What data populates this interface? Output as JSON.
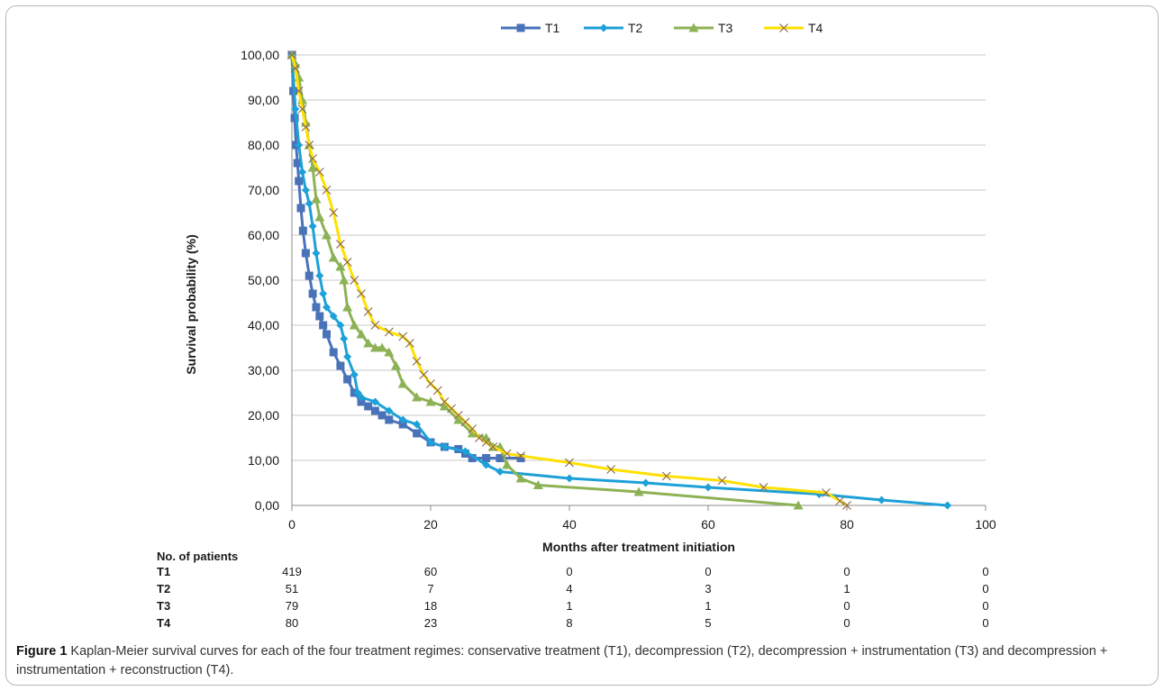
{
  "chart_data": {
    "type": "line",
    "title": "",
    "xlabel": "Months after treatment initiation",
    "ylabel": "Survival probability (%)",
    "xlim": [
      0,
      100
    ],
    "ylim": [
      0,
      100
    ],
    "x_ticks": [
      "0",
      "20",
      "40",
      "60",
      "80",
      "100"
    ],
    "y_ticks": [
      "0,00",
      "10,00",
      "20,00",
      "30,00",
      "40,00",
      "50,00",
      "60,00",
      "70,00",
      "80,00",
      "90,00",
      "100,00"
    ],
    "grid": "horizontal",
    "legend": "top-center",
    "series": [
      {
        "name": "T1",
        "color": "#4a72b8",
        "marker": "square",
        "points": [
          [
            0,
            100
          ],
          [
            0.2,
            92
          ],
          [
            0.4,
            86
          ],
          [
            0.6,
            80
          ],
          [
            0.8,
            76
          ],
          [
            1,
            72
          ],
          [
            1.3,
            66
          ],
          [
            1.6,
            61
          ],
          [
            2,
            56
          ],
          [
            2.5,
            51
          ],
          [
            3,
            47
          ],
          [
            3.5,
            44
          ],
          [
            4,
            42
          ],
          [
            4.5,
            40
          ],
          [
            5,
            38
          ],
          [
            6,
            34
          ],
          [
            7,
            31
          ],
          [
            8,
            28
          ],
          [
            9,
            25
          ],
          [
            10,
            23
          ],
          [
            11,
            22
          ],
          [
            12,
            21
          ],
          [
            13,
            20
          ],
          [
            14,
            19
          ],
          [
            16,
            18
          ],
          [
            18,
            16
          ],
          [
            20,
            14
          ],
          [
            22,
            13
          ],
          [
            24,
            12.5
          ],
          [
            25,
            11.5
          ],
          [
            26,
            10.5
          ],
          [
            28,
            10.5
          ],
          [
            30,
            10.5
          ],
          [
            33,
            10.5
          ]
        ]
      },
      {
        "name": "T2",
        "color": "#1ea0d8",
        "marker": "diamond",
        "points": [
          [
            0,
            100
          ],
          [
            0.5,
            88
          ],
          [
            1,
            80
          ],
          [
            1.5,
            74
          ],
          [
            2,
            70
          ],
          [
            2.5,
            67
          ],
          [
            3,
            62
          ],
          [
            3.5,
            56
          ],
          [
            4,
            51
          ],
          [
            4.5,
            47
          ],
          [
            5,
            44
          ],
          [
            6,
            42
          ],
          [
            7,
            40
          ],
          [
            7.5,
            37
          ],
          [
            8,
            33
          ],
          [
            9,
            29
          ],
          [
            9.5,
            25
          ],
          [
            10,
            24
          ],
          [
            12,
            23
          ],
          [
            14,
            21
          ],
          [
            16,
            19
          ],
          [
            18,
            18
          ],
          [
            20,
            14
          ],
          [
            22,
            13
          ],
          [
            25,
            12
          ],
          [
            28,
            9
          ],
          [
            30,
            7.5
          ],
          [
            40,
            6
          ],
          [
            51,
            5
          ],
          [
            60,
            4
          ],
          [
            76,
            2.5
          ],
          [
            85,
            1.2
          ],
          [
            94.5,
            0
          ]
        ]
      },
      {
        "name": "T3",
        "color": "#8db255",
        "marker": "triangle",
        "points": [
          [
            0,
            100
          ],
          [
            0.5,
            98
          ],
          [
            1,
            95
          ],
          [
            1.5,
            90
          ],
          [
            2,
            85
          ],
          [
            2.5,
            80
          ],
          [
            3,
            75
          ],
          [
            3.5,
            68
          ],
          [
            4,
            64
          ],
          [
            5,
            60
          ],
          [
            6,
            55
          ],
          [
            7,
            53
          ],
          [
            7.5,
            50
          ],
          [
            8,
            44
          ],
          [
            9,
            40
          ],
          [
            10,
            38
          ],
          [
            11,
            36
          ],
          [
            12,
            35
          ],
          [
            13,
            35
          ],
          [
            14,
            34
          ],
          [
            15,
            31
          ],
          [
            16,
            27
          ],
          [
            18,
            24
          ],
          [
            20,
            23
          ],
          [
            22,
            22
          ],
          [
            24,
            19
          ],
          [
            26,
            16
          ],
          [
            28,
            15
          ],
          [
            29,
            13
          ],
          [
            30,
            13
          ],
          [
            31,
            9
          ],
          [
            33,
            6
          ],
          [
            35.5,
            4.5
          ],
          [
            50,
            3
          ],
          [
            73,
            0
          ]
        ]
      },
      {
        "name": "T4",
        "color": "#ffe000",
        "marker": "x",
        "points": [
          [
            0,
            100
          ],
          [
            0.5,
            97
          ],
          [
            1,
            92
          ],
          [
            1.5,
            88
          ],
          [
            2,
            84
          ],
          [
            2.5,
            80
          ],
          [
            3,
            77
          ],
          [
            4,
            74
          ],
          [
            5,
            70
          ],
          [
            6,
            65
          ],
          [
            7,
            58
          ],
          [
            8,
            54
          ],
          [
            9,
            50
          ],
          [
            10,
            47
          ],
          [
            11,
            43
          ],
          [
            12,
            40
          ],
          [
            14,
            38.5
          ],
          [
            16,
            37.5
          ],
          [
            17,
            36
          ],
          [
            18,
            32
          ],
          [
            19,
            29
          ],
          [
            20,
            27
          ],
          [
            21,
            25.5
          ],
          [
            22,
            23
          ],
          [
            23,
            21.5
          ],
          [
            24,
            20
          ],
          [
            25,
            18.5
          ],
          [
            26,
            17
          ],
          [
            27,
            15
          ],
          [
            28,
            14
          ],
          [
            29,
            13
          ],
          [
            31,
            11.5
          ],
          [
            33,
            11
          ],
          [
            40,
            9.5
          ],
          [
            46,
            8
          ],
          [
            54,
            6.5
          ],
          [
            62,
            5.5
          ],
          [
            68,
            4
          ],
          [
            77,
            2.8
          ],
          [
            79,
            1
          ],
          [
            80,
            0
          ]
        ]
      }
    ],
    "risk_table": {
      "title": "No. of patients",
      "rows": [
        {
          "label": "T1",
          "counts": [
            "419",
            "60",
            "0",
            "0",
            "0",
            "0"
          ]
        },
        {
          "label": "T2",
          "counts": [
            "51",
            "7",
            "4",
            "3",
            "1",
            "0"
          ]
        },
        {
          "label": "T3",
          "counts": [
            "79",
            "18",
            "1",
            "1",
            "0",
            "0"
          ]
        },
        {
          "label": "T4",
          "counts": [
            "80",
            "23",
            "8",
            "5",
            "0",
            "0"
          ]
        }
      ]
    }
  },
  "caption": {
    "label": "Figure 1",
    "text": " Kaplan-Meier survival curves for each of the four treatment regimes: conservative treatment (T1), decompression (T2), decompression + instrumentation (T3) and decompression + instrumentation + reconstruction (T4)."
  }
}
